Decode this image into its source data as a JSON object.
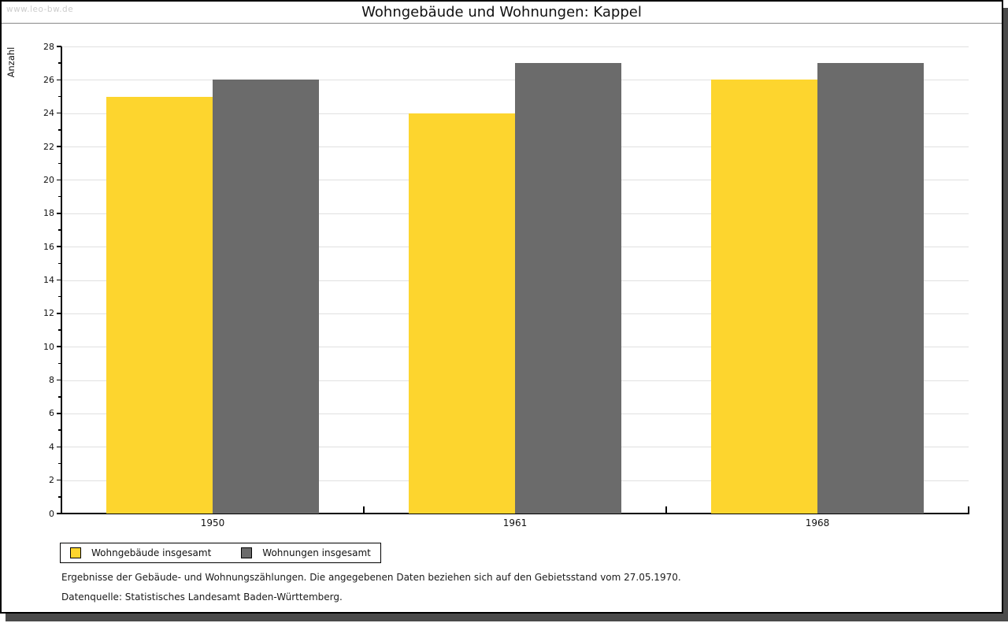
{
  "watermark": "www.leo-bw.de",
  "title": "Wohngebäude und Wohnungen: Kappel",
  "chart_data": {
    "type": "bar",
    "title": "Wohngebäude und Wohnungen: Kappel",
    "categories": [
      "1950",
      "1961",
      "1968"
    ],
    "series": [
      {
        "name": "Wohngebäude insgesamt",
        "color": "#fdd52e",
        "values": [
          25,
          24,
          26
        ]
      },
      {
        "name": "Wohnungen insgesamt",
        "color": "#6b6b6b",
        "values": [
          26,
          27,
          27
        ]
      }
    ],
    "xlabel": "",
    "ylabel": "Anzahl",
    "ylim": [
      0,
      28
    ],
    "ytick_major_step": 2,
    "ytick_minor_step": 1,
    "grid": "horizontal-major",
    "legend_position": "bottom-left",
    "gridline_color": "#e0e0e0",
    "axis_color": "#000000"
  },
  "footer": {
    "line1": "Ergebnisse der Gebäude- und Wohnungszählungen. Die angegebenen Daten beziehen sich auf den Gebietsstand vom 27.05.1970.",
    "line2": "Datenquelle: Statistisches Landesamt Baden-Württemberg."
  }
}
